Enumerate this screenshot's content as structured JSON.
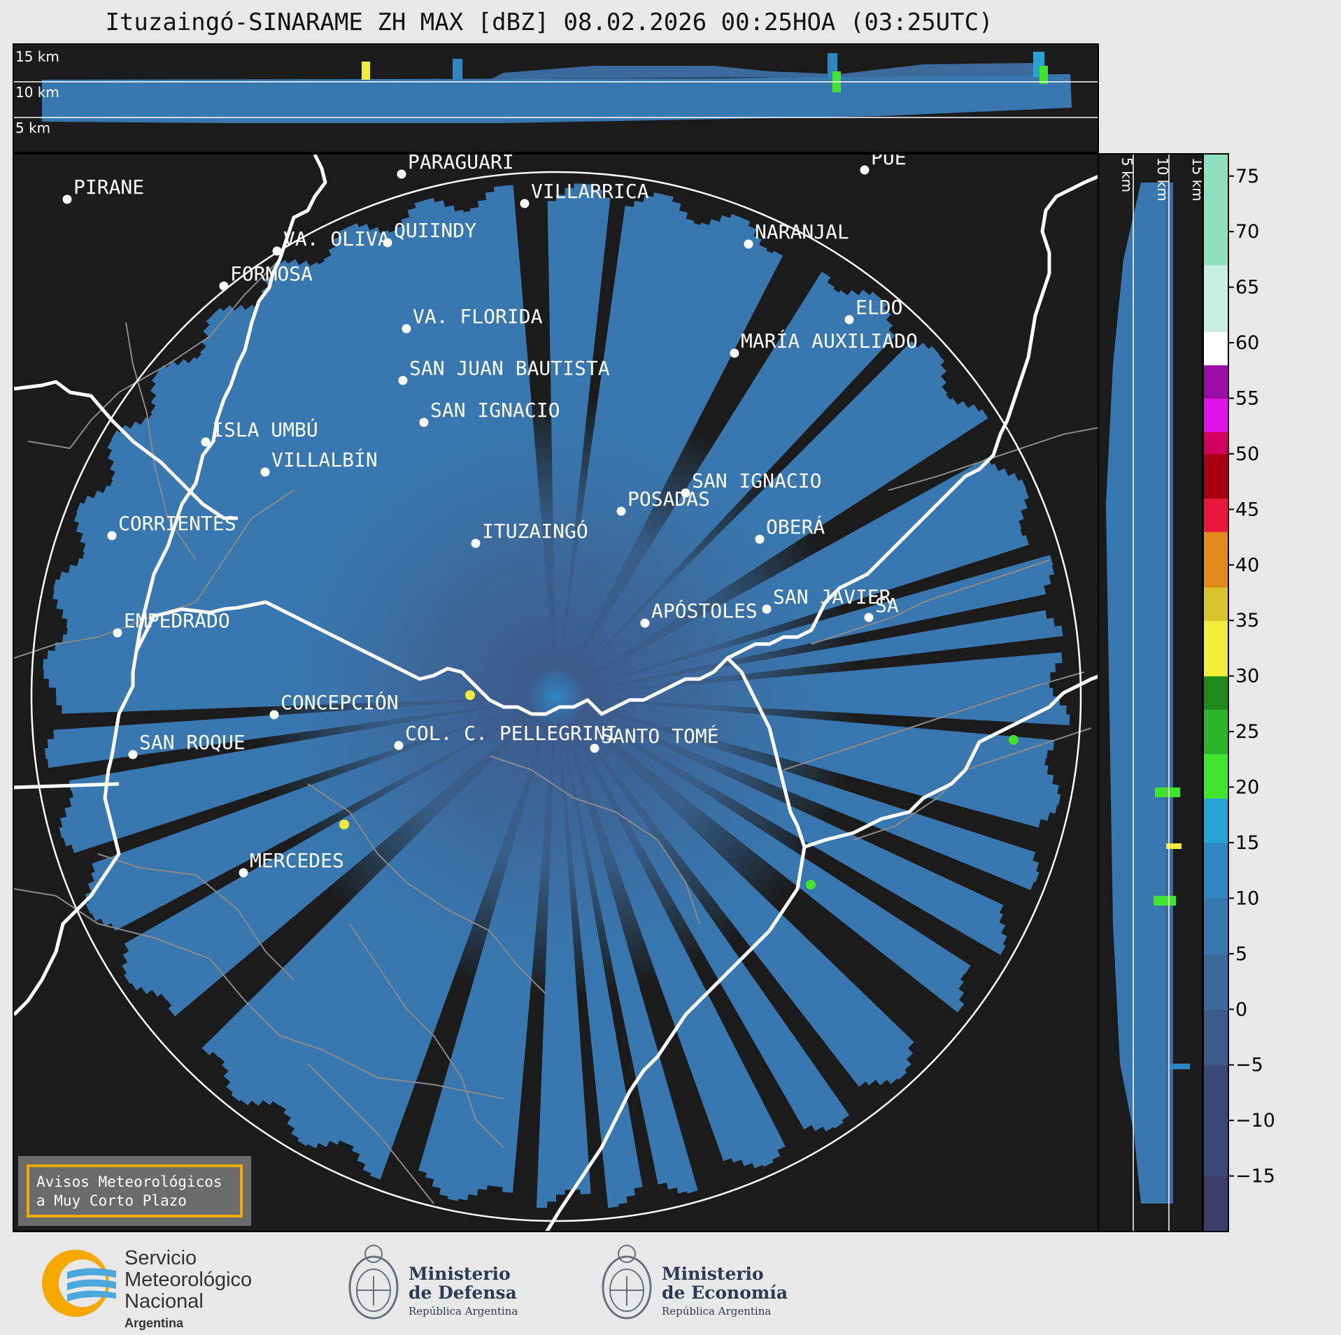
{
  "title": "Ituzaingó-SINARAME ZH MAX [dBZ] 08.02.2026 00:25HOA (03:25UTC)",
  "top_panel": {
    "height_labels": [
      "15 km",
      "10 km",
      "5 km"
    ]
  },
  "right_panel": {
    "height_labels": [
      "5 km",
      "10 km",
      "15 km"
    ]
  },
  "colorbar": {
    "ticks": [
      "75",
      "70",
      "65",
      "60",
      "55",
      "50",
      "45",
      "40",
      "35",
      "30",
      "25",
      "20",
      "15",
      "10",
      "5",
      "0",
      "−5",
      "−10",
      "−15"
    ],
    "range_dbz": [
      -20,
      77
    ],
    "colors": {
      "c0": "#3b3e6a",
      "c1": "#3c4a7a",
      "c2": "#3d5a8c",
      "c3": "#3d6a9c",
      "c4": "#3877af",
      "c5": "#2f86c1",
      "c6": "#26a4d6",
      "c7": "#42e32f",
      "c8": "#2db52a",
      "c9": "#1e8a1c",
      "c10": "#f0ec3a",
      "c11": "#d8c42a",
      "c12": "#e08a1a",
      "c13": "#e8173b",
      "c14": "#a80010",
      "c15": "#d40060",
      "c16": "#e014e8",
      "c17": "#9c0ca8",
      "c18": "#ffffff",
      "c19": "#c8efe0",
      "c20": "#8ee0c0"
    }
  },
  "map": {
    "radar_site": "ITUZAINGÓ",
    "places": [
      {
        "name": "PIRANE"
      },
      {
        "name": "PARAGUARÍ"
      },
      {
        "name": "VILLARRICA"
      },
      {
        "name": "QUIINDY"
      },
      {
        "name": "VA. OLIVA"
      },
      {
        "name": "FORMOSA"
      },
      {
        "name": "NARANJAL"
      },
      {
        "name": "PUE"
      },
      {
        "name": "VA. FLORIDA"
      },
      {
        "name": "ELDO"
      },
      {
        "name": "MARÍA AUXILIADO"
      },
      {
        "name": "SAN JUAN BAUTISTA"
      },
      {
        "name": "SAN IGNACIO"
      },
      {
        "name": "ISLA UMBÚ"
      },
      {
        "name": "VILLALBÍN"
      },
      {
        "name": "SAN IGNACIO"
      },
      {
        "name": "POSADAS"
      },
      {
        "name": "CORRIENTES"
      },
      {
        "name": "OBERÁ"
      },
      {
        "name": "ITUZAINGÓ"
      },
      {
        "name": "EMPEDRADO"
      },
      {
        "name": "APÓSTOLES"
      },
      {
        "name": "SAN JAVIER"
      },
      {
        "name": "SA"
      },
      {
        "name": "CONCEPCIÓN"
      },
      {
        "name": "SAN ROQUE"
      },
      {
        "name": "COL. C. PELLEGRINI"
      },
      {
        "name": "SANTO TOMÉ"
      },
      {
        "name": "MERCEDES"
      }
    ]
  },
  "warning_box": {
    "line1": "Avisos Meteorológicos",
    "line2": "a Muy Corto Plazo"
  },
  "footer": {
    "smn": {
      "line1": "Servicio",
      "line2": "Meteorológico",
      "line3": "Nacional",
      "line4": "Argentina"
    },
    "defensa": {
      "line1": "Ministerio",
      "line2": "de Defensa",
      "line3": "República Argentina"
    },
    "economia": {
      "line1": "Ministerio",
      "line2": "de Economía",
      "line3": "República Argentina"
    }
  }
}
